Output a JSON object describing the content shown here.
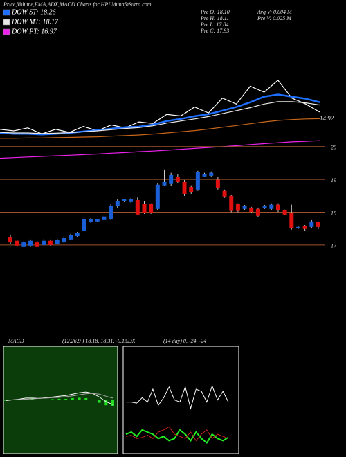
{
  "header": {
    "title": "Price,Volume,EMA,ADX,MACD Charts for HPI MunafaSutra.com",
    "stats": [
      "Pre  O: 18.10",
      "Pre  H: 18.11",
      "Pre  L: 17.84",
      "Pre  C: 17.93",
      "Avg  V: 0.004  M",
      "Pre  V: 0.025  M"
    ]
  },
  "chart_data": [
    {
      "type": "line",
      "ylim": [
        16.3,
        20.3
      ],
      "annotation": "14.92",
      "series": [
        {
          "color": "#ffffff",
          "values": [
            17.35,
            17.3,
            17.4,
            17.2,
            17.35,
            17.25,
            17.45,
            17.3,
            17.5,
            17.4,
            17.6,
            17.55,
            17.85,
            17.8,
            18.1,
            17.9,
            18.4,
            18.2,
            18.8,
            18.6,
            19.0,
            18.4,
            18.2,
            17.93
          ]
        },
        {
          "name": "DOW ST: 18.26",
          "color": "#1e6fff",
          "values": [
            17.23,
            17.2,
            17.2,
            17.18,
            17.2,
            17.23,
            17.28,
            17.32,
            17.37,
            17.42,
            17.44,
            17.51,
            17.63,
            17.7,
            17.79,
            17.86,
            17.98,
            18.1,
            18.26,
            18.45,
            18.52,
            18.45,
            18.38,
            18.26
          ]
        },
        {
          "name": "DOW MT: 18.17",
          "color": "#e8e8e8",
          "values": [
            17.25,
            17.23,
            17.23,
            17.21,
            17.22,
            17.24,
            17.27,
            17.3,
            17.34,
            17.38,
            17.41,
            17.47,
            17.56,
            17.63,
            17.7,
            17.78,
            17.88,
            17.98,
            18.08,
            18.2,
            18.28,
            18.28,
            18.24,
            18.17
          ]
        },
        {
          "color": "#c8661a",
          "values": [
            17.05,
            17.05,
            17.06,
            17.06,
            17.07,
            17.08,
            17.09,
            17.1,
            17.12,
            17.14,
            17.16,
            17.19,
            17.23,
            17.27,
            17.31,
            17.36,
            17.42,
            17.48,
            17.54,
            17.6,
            17.65,
            17.68,
            17.7,
            17.71
          ]
        },
        {
          "name": "DOW PT: 16.97",
          "color": "#ee22ee",
          "values": [
            16.38,
            16.4,
            16.42,
            16.44,
            16.46,
            16.48,
            16.5,
            16.52,
            16.55,
            16.57,
            16.6,
            16.62,
            16.65,
            16.68,
            16.71,
            16.74,
            16.77,
            16.8,
            16.84,
            16.87,
            16.9,
            16.93,
            16.95,
            16.97
          ]
        }
      ]
    },
    {
      "type": "candlestick",
      "ylim": [
        16.85,
        20.1
      ],
      "yticks": [
        17,
        18,
        19,
        20
      ],
      "grid": true,
      "grid_color": "#a0522d",
      "up_color": "#1a5fd6",
      "down_color": "#e01010",
      "open": [
        17.25,
        17.13,
        16.96,
        16.98,
        17.08,
        17.0,
        17.13,
        17.04,
        17.08,
        17.17,
        17.27,
        17.44,
        17.7,
        17.72,
        17.76,
        17.78,
        18.18,
        18.33,
        18.31,
        18.37,
        18.25,
        18.25,
        18.1,
        18.82,
        18.86,
        19.07,
        18.92,
        18.77,
        18.69,
        19.09,
        19.11,
        18.99,
        18.65,
        18.5,
        18.25,
        18.1,
        18.14,
        18.1,
        18.12,
        18.1,
        18.23,
        18.06,
        17.99,
        17.51,
        17.59,
        17.55,
        17.7
      ],
      "high": [
        17.32,
        17.17,
        17.12,
        17.17,
        17.12,
        17.19,
        17.17,
        17.19,
        17.27,
        17.34,
        17.4,
        17.84,
        17.82,
        17.8,
        17.91,
        18.24,
        18.39,
        18.41,
        18.43,
        18.45,
        18.33,
        18.27,
        18.88,
        19.3,
        19.2,
        19.17,
        18.98,
        18.82,
        19.26,
        19.2,
        19.24,
        19.07,
        18.69,
        18.54,
        18.27,
        18.22,
        18.16,
        18.14,
        18.22,
        18.27,
        18.27,
        18.08,
        18.23,
        17.57,
        17.61,
        17.76,
        17.72
      ],
      "low": [
        17.03,
        16.96,
        16.93,
        16.96,
        16.94,
        16.98,
        16.98,
        17.02,
        17.06,
        17.15,
        17.25,
        17.42,
        17.68,
        17.7,
        17.74,
        17.76,
        18.12,
        18.31,
        18.29,
        17.91,
        17.95,
        17.95,
        18.06,
        18.8,
        18.8,
        18.88,
        18.5,
        18.56,
        18.65,
        19.07,
        19.09,
        18.69,
        18.44,
        18.0,
        18.0,
        18.06,
        17.99,
        17.85,
        18.1,
        18.06,
        18.01,
        17.91,
        17.47,
        17.49,
        17.44,
        17.51,
        17.49
      ],
      "close": [
        17.08,
        16.98,
        17.08,
        17.13,
        16.96,
        17.13,
        17.0,
        17.15,
        17.23,
        17.3,
        17.36,
        17.8,
        17.78,
        17.78,
        17.87,
        18.2,
        18.35,
        18.39,
        18.39,
        17.93,
        17.97,
        17.99,
        18.84,
        18.92,
        19.13,
        18.92,
        18.56,
        18.61,
        19.22,
        19.16,
        19.2,
        18.73,
        18.48,
        18.04,
        18.04,
        18.18,
        18.01,
        17.89,
        18.18,
        18.23,
        18.06,
        17.93,
        17.51,
        17.55,
        17.49,
        17.72,
        17.55
      ]
    },
    {
      "type": "macd",
      "title": "MACD",
      "subtitle": "(12,26,9 ) 18.18, 18.31, -0.13",
      "ylim": [
        -1.5,
        1.5
      ],
      "background": "#0b3d0b",
      "series": [
        {
          "color": "#ffffff",
          "values": [
            -0.02,
            0,
            0.02,
            0.05,
            0.05,
            0.04,
            0.06,
            0.08,
            0.1,
            0.12,
            0.16,
            0.2,
            0.22,
            0.18,
            0.08,
            -0.05,
            -0.13
          ]
        },
        {
          "color": "#aaaaaa",
          "values": [
            0,
            0,
            0.01,
            0.02,
            0.03,
            0.04,
            0.05,
            0.06,
            0.07,
            0.09,
            0.11,
            0.14,
            0.17,
            0.18,
            0.16,
            0.1,
            0.05
          ]
        }
      ],
      "histogram": {
        "color": "#22dd22",
        "values": [
          -0.02,
          0,
          0.01,
          0.03,
          0.02,
          0,
          0.01,
          0.02,
          0.03,
          0.03,
          0.05,
          0.06,
          0.05,
          0,
          -0.08,
          -0.15,
          -0.18
        ]
      }
    },
    {
      "type": "adx",
      "title": "ADX",
      "subtitle": "(14 day) 0, -24, -24",
      "ylim": [
        0,
        100
      ],
      "background": "#000000",
      "series": [
        {
          "color": "#ffffff",
          "values": [
            48,
            48,
            47,
            52,
            48,
            60,
            45,
            52,
            62,
            50,
            48,
            62,
            42,
            60,
            58,
            48,
            63,
            50,
            58,
            48
          ]
        },
        {
          "color": "#22ee22",
          "values": [
            18,
            20,
            16,
            22,
            20,
            18,
            14,
            16,
            12,
            14,
            22,
            18,
            12,
            20,
            14,
            10,
            18,
            14,
            12,
            15
          ]
        },
        {
          "color": "#cc2222",
          "values": [
            16,
            17,
            14,
            15,
            17,
            14,
            20,
            22,
            25,
            18,
            16,
            14,
            20,
            12,
            18,
            22,
            14,
            18,
            16,
            14
          ]
        }
      ]
    }
  ]
}
